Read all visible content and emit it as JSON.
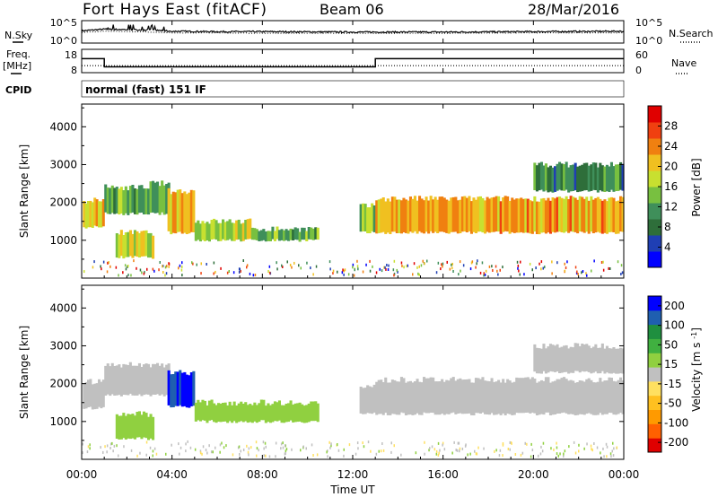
{
  "header": {
    "title": "Fort Hays East (fitACF)",
    "beam": "Beam 06",
    "date": "28/Mar/2016"
  },
  "left_labels": {
    "nsky": "N.Sky",
    "freq": "Freq.",
    "freq_unit": "[MHz]",
    "cpid": "CPID"
  },
  "right_labels": {
    "nsearch": "N.Search",
    "nave": "Nave"
  },
  "cpid_text": "normal (fast) 151 IF",
  "colors": {
    "power_scale": [
      "#0000ff",
      "#1f3fb4",
      "#2e6e3a",
      "#3f8f5a",
      "#78c040",
      "#c8e030",
      "#f0c020",
      "#f08010",
      "#f04010",
      "#e00000"
    ],
    "velocity_scale": [
      "#e00000",
      "#ff6000",
      "#ff9a00",
      "#ffc020",
      "#ffe060",
      "#c0c0c0",
      "#90d040",
      "#40b040",
      "#1f8f3f",
      "#1f5fb0",
      "#0000ff"
    ],
    "noise": "#000000"
  },
  "chart_data": [
    {
      "type": "line",
      "name": "noise-panel",
      "y_tick_labels_left": [
        "10^5",
        "10^0"
      ],
      "y_tick_labels_right": [
        "10^5",
        "10^0"
      ],
      "x_range_hours": [
        0,
        24
      ],
      "series": [
        {
          "name": "N.Sky",
          "style": "solid",
          "x": [
            0,
            1,
            2,
            3,
            4,
            6,
            8,
            12,
            16,
            20,
            24
          ],
          "values": [
            3.0,
            3.4,
            3.3,
            3.2,
            2.9,
            2.8,
            2.8,
            2.7,
            2.7,
            2.8,
            2.9
          ]
        },
        {
          "name": "N.Search",
          "style": "dotted",
          "x": [
            0,
            1,
            2,
            3,
            4,
            6,
            8,
            12,
            16,
            20,
            24
          ],
          "values": [
            2.6,
            2.9,
            2.8,
            2.7,
            2.5,
            2.5,
            2.4,
            2.4,
            2.4,
            2.5,
            2.5
          ]
        }
      ]
    },
    {
      "type": "line",
      "name": "freq-nave-panel",
      "y_tick_labels_left": [
        "18",
        "8"
      ],
      "y_tick_labels_right": [
        "60",
        "0"
      ],
      "series": [
        {
          "name": "Freq.",
          "style": "solid",
          "x": [
            0,
            1,
            1,
            13,
            13,
            24
          ],
          "values": [
            14,
            14,
            10.5,
            10.5,
            14,
            14
          ],
          "ylim": [
            8,
            18
          ]
        },
        {
          "name": "Nave",
          "style": "dotted",
          "x": [
            0,
            24
          ],
          "values": [
            18,
            18
          ],
          "ylim": [
            0,
            60
          ]
        }
      ]
    },
    {
      "type": "heatmap",
      "name": "power-panel",
      "ylabel": "Slant Range [km]",
      "yticks": [
        1000,
        2000,
        3000,
        4000
      ],
      "ylim": [
        0,
        4600
      ],
      "colorbar_label": "Power [dB]",
      "colorbar_ticks": [
        "4",
        "8",
        "12",
        "16",
        "20",
        "24",
        "28"
      ],
      "colorbar_range": [
        0,
        32
      ],
      "regions": [
        {
          "x0": 0.05,
          "x1": 1.0,
          "r0": 1350,
          "r1": 2050,
          "value": 20
        },
        {
          "x0": 1.0,
          "x1": 3.0,
          "r0": 1700,
          "r1": 2400,
          "value": 13
        },
        {
          "x0": 1.5,
          "x1": 3.2,
          "r0": 550,
          "r1": 1200,
          "value": 18
        },
        {
          "x0": 3.0,
          "x1": 3.9,
          "r0": 1700,
          "r1": 2500,
          "value": 12
        },
        {
          "x0": 3.8,
          "x1": 5.0,
          "r0": 1200,
          "r1": 2300,
          "value": 22
        },
        {
          "x0": 5.0,
          "x1": 7.5,
          "r0": 1000,
          "r1": 1500,
          "value": 17
        },
        {
          "x0": 7.5,
          "x1": 10.5,
          "r0": 1000,
          "r1": 1300,
          "value": 13
        },
        {
          "x0": 12.3,
          "x1": 13.0,
          "r0": 1200,
          "r1": 1900,
          "value": 15
        },
        {
          "x0": 13.0,
          "x1": 24.0,
          "r0": 1200,
          "r1": 2100,
          "value": 22
        },
        {
          "x0": 20.0,
          "x1": 24.0,
          "r0": 2300,
          "r1": 3000,
          "value": 10
        }
      ]
    },
    {
      "type": "heatmap",
      "name": "velocity-panel",
      "ylabel": "Slant Range [km]",
      "yticks": [
        1000,
        2000,
        3000,
        4000
      ],
      "ylim": [
        0,
        4600
      ],
      "colorbar_label": "Velocity [m s^-1]",
      "colorbar_ticks": [
        "200",
        "100",
        "50",
        "15",
        "-15",
        "-50",
        "-100",
        "-200"
      ],
      "colorbar_range": [
        -250,
        250
      ],
      "regions": [
        {
          "x0": 0.05,
          "x1": 1.0,
          "r0": 1350,
          "r1": 2050,
          "value": 0
        },
        {
          "x0": 1.0,
          "x1": 3.9,
          "r0": 1700,
          "r1": 2500,
          "value": 0
        },
        {
          "x0": 1.5,
          "x1": 3.2,
          "r0": 550,
          "r1": 1200,
          "value": 50
        },
        {
          "x0": 3.8,
          "x1": 5.0,
          "r0": 1400,
          "r1": 2300,
          "value": 200
        },
        {
          "x0": 5.0,
          "x1": 10.5,
          "r0": 1000,
          "r1": 1500,
          "value": 50
        },
        {
          "x0": 12.3,
          "x1": 13.0,
          "r0": 1200,
          "r1": 1900,
          "value": 0
        },
        {
          "x0": 13.0,
          "x1": 24.0,
          "r0": 1200,
          "r1": 2100,
          "value": 0
        },
        {
          "x0": 20.0,
          "x1": 24.0,
          "r0": 2300,
          "r1": 3000,
          "value": 0
        }
      ]
    }
  ],
  "x_axis": {
    "label": "Time UT",
    "ticks": [
      "00:00",
      "04:00",
      "08:00",
      "12:00",
      "16:00",
      "20:00",
      "00:00"
    ],
    "tick_hours": [
      0,
      4,
      8,
      12,
      16,
      20,
      24
    ]
  }
}
